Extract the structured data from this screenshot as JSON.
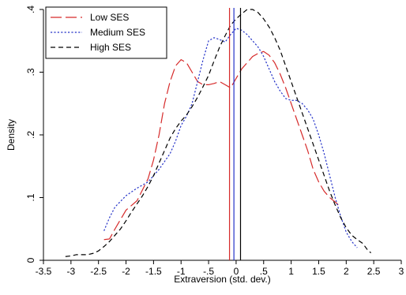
{
  "chart_data": {
    "type": "line",
    "title": "",
    "xlabel": "Extraversion (std. dev.)",
    "ylabel": "Density",
    "xlim": [
      -3.5,
      3.0
    ],
    "ylim": [
      0.0,
      0.4
    ],
    "xticks": [
      "-3.5",
      "-3",
      "-2.5",
      "-2",
      "-1.5",
      "-1",
      "-.5",
      "0",
      ".5",
      "1",
      "1.5",
      "2",
      "2.5",
      "3"
    ],
    "yticks": [
      "0",
      ".1",
      ".2",
      ".3",
      ".4"
    ],
    "legend_position": "top-left",
    "grid": false,
    "series": [
      {
        "name": "Low SES",
        "color": "#d62a2a",
        "dash": "long-dash",
        "points": [
          [
            -2.4,
            0.033
          ],
          [
            -2.3,
            0.034
          ],
          [
            -2.2,
            0.05
          ],
          [
            -2.0,
            0.08
          ],
          [
            -1.8,
            0.095
          ],
          [
            -1.6,
            0.13
          ],
          [
            -1.5,
            0.16
          ],
          [
            -1.4,
            0.2
          ],
          [
            -1.3,
            0.25
          ],
          [
            -1.2,
            0.285
          ],
          [
            -1.1,
            0.31
          ],
          [
            -1.0,
            0.32
          ],
          [
            -0.9,
            0.315
          ],
          [
            -0.8,
            0.3
          ],
          [
            -0.7,
            0.285
          ],
          [
            -0.6,
            0.28
          ],
          [
            -0.5,
            0.28
          ],
          [
            -0.4,
            0.282
          ],
          [
            -0.3,
            0.285
          ],
          [
            -0.2,
            0.28
          ],
          [
            -0.1,
            0.275
          ],
          [
            0.0,
            0.29
          ],
          [
            0.1,
            0.305
          ],
          [
            0.2,
            0.315
          ],
          [
            0.3,
            0.325
          ],
          [
            0.4,
            0.33
          ],
          [
            0.5,
            0.333
          ],
          [
            0.6,
            0.327
          ],
          [
            0.7,
            0.315
          ],
          [
            0.8,
            0.297
          ],
          [
            0.9,
            0.275
          ],
          [
            1.0,
            0.25
          ],
          [
            1.1,
            0.225
          ],
          [
            1.2,
            0.2
          ],
          [
            1.3,
            0.175
          ],
          [
            1.4,
            0.145
          ],
          [
            1.5,
            0.125
          ],
          [
            1.6,
            0.11
          ],
          [
            1.7,
            0.1
          ],
          [
            1.8,
            0.093
          ],
          [
            1.9,
            0.085
          ]
        ]
      },
      {
        "name": "Medium SES",
        "color": "#2432c8",
        "dash": "dotted",
        "points": [
          [
            -2.4,
            0.047
          ],
          [
            -2.3,
            0.068
          ],
          [
            -2.2,
            0.085
          ],
          [
            -2.0,
            0.103
          ],
          [
            -1.8,
            0.115
          ],
          [
            -1.6,
            0.125
          ],
          [
            -1.4,
            0.145
          ],
          [
            -1.2,
            0.17
          ],
          [
            -1.1,
            0.19
          ],
          [
            -1.0,
            0.215
          ],
          [
            -0.9,
            0.23
          ],
          [
            -0.8,
            0.25
          ],
          [
            -0.7,
            0.285
          ],
          [
            -0.6,
            0.32
          ],
          [
            -0.5,
            0.35
          ],
          [
            -0.4,
            0.355
          ],
          [
            -0.3,
            0.352
          ],
          [
            -0.2,
            0.348
          ],
          [
            -0.1,
            0.36
          ],
          [
            0.0,
            0.37
          ],
          [
            0.1,
            0.367
          ],
          [
            0.2,
            0.36
          ],
          [
            0.3,
            0.35
          ],
          [
            0.4,
            0.34
          ],
          [
            0.5,
            0.325
          ],
          [
            0.6,
            0.305
          ],
          [
            0.7,
            0.285
          ],
          [
            0.8,
            0.27
          ],
          [
            0.9,
            0.258
          ],
          [
            1.0,
            0.255
          ],
          [
            1.1,
            0.255
          ],
          [
            1.2,
            0.25
          ],
          [
            1.3,
            0.24
          ],
          [
            1.4,
            0.225
          ],
          [
            1.5,
            0.2
          ],
          [
            1.6,
            0.17
          ],
          [
            1.7,
            0.135
          ],
          [
            1.8,
            0.1
          ],
          [
            1.9,
            0.07
          ],
          [
            2.0,
            0.045
          ],
          [
            2.1,
            0.03
          ],
          [
            2.2,
            0.02
          ]
        ]
      },
      {
        "name": "High SES",
        "color": "#000000",
        "dash": "dashed",
        "points": [
          [
            -3.1,
            0.006
          ],
          [
            -3.0,
            0.007
          ],
          [
            -2.9,
            0.009
          ],
          [
            -2.8,
            0.009
          ],
          [
            -2.7,
            0.009
          ],
          [
            -2.6,
            0.011
          ],
          [
            -2.5,
            0.015
          ],
          [
            -2.4,
            0.022
          ],
          [
            -2.3,
            0.03
          ],
          [
            -2.2,
            0.04
          ],
          [
            -2.1,
            0.05
          ],
          [
            -2.0,
            0.063
          ],
          [
            -1.9,
            0.077
          ],
          [
            -1.8,
            0.09
          ],
          [
            -1.7,
            0.103
          ],
          [
            -1.6,
            0.118
          ],
          [
            -1.5,
            0.135
          ],
          [
            -1.4,
            0.155
          ],
          [
            -1.3,
            0.175
          ],
          [
            -1.2,
            0.195
          ],
          [
            -1.1,
            0.21
          ],
          [
            -1.0,
            0.222
          ],
          [
            -0.9,
            0.232
          ],
          [
            -0.8,
            0.245
          ],
          [
            -0.7,
            0.26
          ],
          [
            -0.6,
            0.277
          ],
          [
            -0.5,
            0.295
          ],
          [
            -0.4,
            0.318
          ],
          [
            -0.3,
            0.34
          ],
          [
            -0.2,
            0.358
          ],
          [
            -0.1,
            0.375
          ],
          [
            0.0,
            0.385
          ],
          [
            0.1,
            0.393
          ],
          [
            0.2,
            0.4
          ],
          [
            0.3,
            0.4
          ],
          [
            0.4,
            0.395
          ],
          [
            0.5,
            0.385
          ],
          [
            0.6,
            0.372
          ],
          [
            0.7,
            0.355
          ],
          [
            0.8,
            0.335
          ],
          [
            0.9,
            0.31
          ],
          [
            1.0,
            0.285
          ],
          [
            1.1,
            0.26
          ],
          [
            1.2,
            0.235
          ],
          [
            1.3,
            0.21
          ],
          [
            1.4,
            0.185
          ],
          [
            1.5,
            0.16
          ],
          [
            1.6,
            0.135
          ],
          [
            1.7,
            0.11
          ],
          [
            1.8,
            0.088
          ],
          [
            1.9,
            0.068
          ],
          [
            2.0,
            0.052
          ],
          [
            2.1,
            0.04
          ],
          [
            2.2,
            0.033
          ],
          [
            2.3,
            0.027
          ],
          [
            2.4,
            0.015
          ],
          [
            2.45,
            0.012
          ]
        ]
      }
    ],
    "reference_lines": [
      {
        "series": "Low SES",
        "x": -0.12,
        "color": "#d62a2a"
      },
      {
        "series": "Medium SES",
        "x": -0.04,
        "color": "#2432c8"
      },
      {
        "series": "High SES",
        "x": 0.08,
        "color": "#000000"
      }
    ]
  }
}
